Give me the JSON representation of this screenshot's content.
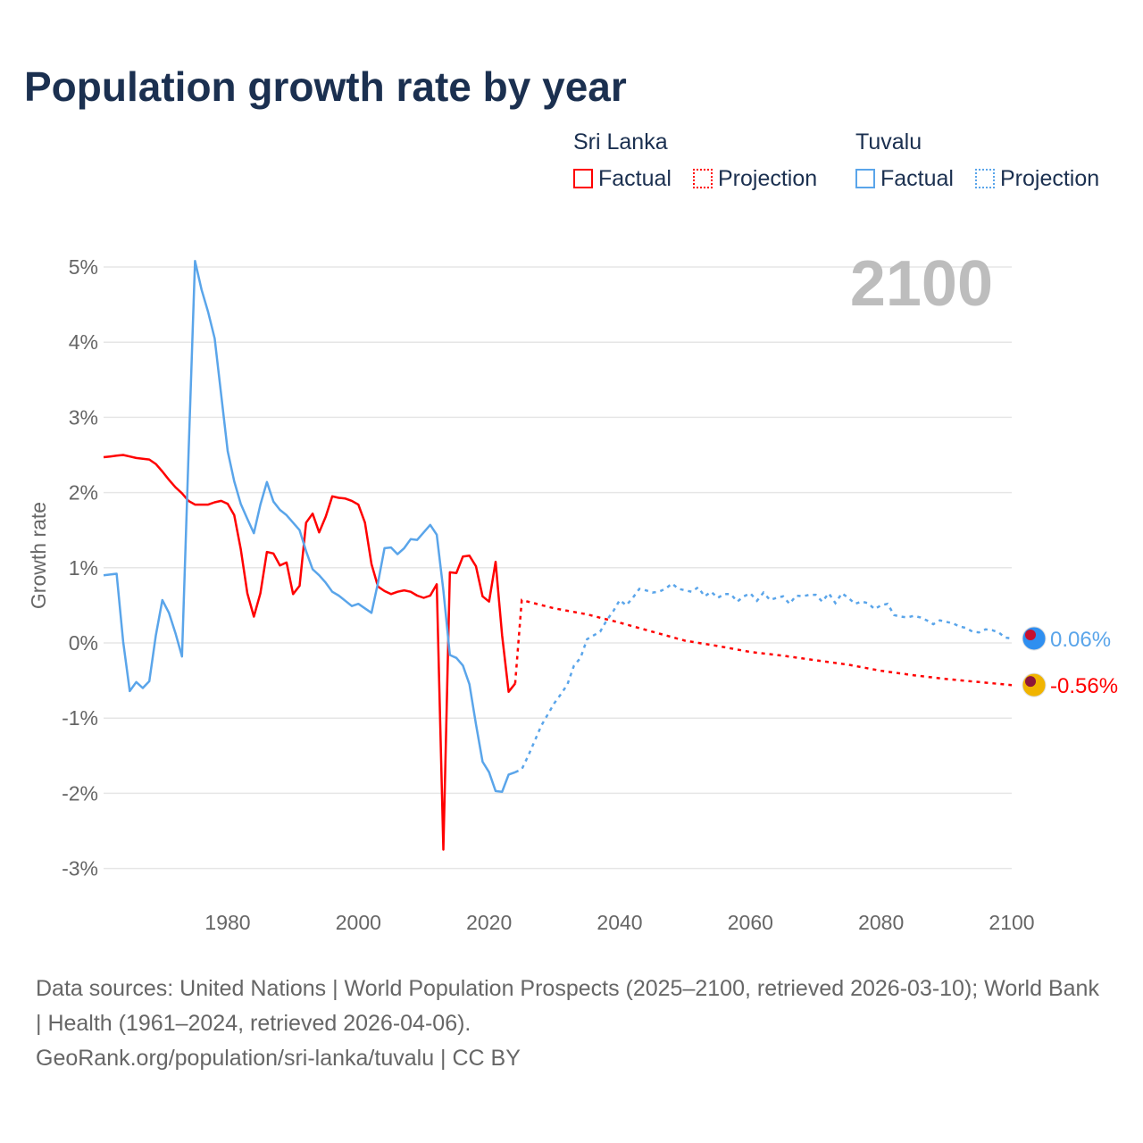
{
  "chart_data": {
    "type": "line",
    "title": "Population growth rate by year",
    "ylabel": "Growth rate",
    "xlabel": "",
    "xlim": [
      1961,
      2100
    ],
    "ylim": [
      -3.3,
      5.2
    ],
    "yticks": [
      5,
      4,
      3,
      2,
      1,
      0,
      -1,
      -2,
      -3
    ],
    "ytick_labels": [
      "5%",
      "4%",
      "3%",
      "2%",
      "1%",
      "0%",
      "-1%",
      "-2%",
      "-3%"
    ],
    "xticks": [
      1980,
      2000,
      2020,
      2040,
      2060,
      2080,
      2100
    ],
    "xtick_labels": [
      "1980",
      "2000",
      "2020",
      "2040",
      "2060",
      "2080",
      "2100"
    ],
    "year_overlay": "2100",
    "legend": {
      "placement": "top-right",
      "groups": [
        {
          "country": "Sri Lanka",
          "factual": "Factual",
          "projection": "Projection",
          "color": "#ff0000"
        },
        {
          "country": "Tuvalu",
          "factual": "Factual",
          "projection": "Projection",
          "color": "#5aa5ea"
        }
      ]
    },
    "series": [
      {
        "name": "Sri Lanka",
        "color": "#ff0000",
        "end_label": "-0.56%",
        "factual": {
          "start": 1961,
          "values": [
            2.47,
            2.48,
            2.49,
            2.5,
            2.48,
            2.46,
            2.45,
            2.44,
            2.38,
            2.28,
            2.17,
            2.07,
            1.99,
            1.89,
            1.84,
            1.84,
            1.84,
            1.87,
            1.89,
            1.85,
            1.7,
            1.25,
            0.66,
            0.35,
            0.66,
            1.21,
            1.19,
            1.03,
            1.07,
            0.65,
            0.76,
            1.6,
            1.72,
            1.47,
            1.68,
            1.95,
            1.93,
            1.92,
            1.89,
            1.84,
            1.6,
            1.05,
            0.75,
            0.69,
            0.65,
            0.68,
            0.7,
            0.68,
            0.63,
            0.6,
            0.63,
            0.78,
            -2.75,
            0.94,
            0.93,
            1.15,
            1.16,
            1.02,
            0.62,
            0.55,
            1.08,
            0.1,
            -0.65,
            -0.54
          ]
        },
        "projection": {
          "start": 2025,
          "step": 5,
          "values": [
            0.57,
            0.46,
            0.38,
            0.27,
            0.15,
            0.03,
            -0.04,
            -0.12,
            -0.17,
            -0.23,
            -0.29,
            -0.37,
            -0.43,
            -0.48,
            -0.52,
            -0.56
          ]
        }
      },
      {
        "name": "Tuvalu",
        "color": "#5aa5ea",
        "end_label": "0.06%",
        "factual": {
          "start": 1961,
          "values": [
            0.9,
            0.91,
            0.92,
            0.02,
            -0.64,
            -0.52,
            -0.6,
            -0.51,
            0.1,
            0.57,
            0.4,
            0.13,
            -0.18,
            2.5,
            5.08,
            4.7,
            4.4,
            4.05,
            3.3,
            2.55,
            2.15,
            1.85,
            1.65,
            1.46,
            1.84,
            2.14,
            1.88,
            1.77,
            1.7,
            1.6,
            1.5,
            1.22,
            0.98,
            0.9,
            0.8,
            0.68,
            0.63,
            0.56,
            0.49,
            0.52,
            0.46,
            0.4,
            0.8,
            1.26,
            1.27,
            1.18,
            1.26,
            1.38,
            1.37,
            1.47,
            1.57,
            1.44,
            0.7,
            -0.16,
            -0.2,
            -0.3,
            -0.55,
            -1.08,
            -1.58,
            -1.72,
            -1.97,
            -1.98,
            -1.75,
            -1.72
          ]
        },
        "projection": {
          "start": 2025,
          "step": 1,
          "values": [
            -1.68,
            -1.5,
            -1.3,
            -1.1,
            -0.95,
            -0.8,
            -0.68,
            -0.55,
            -0.3,
            -0.2,
            0.05,
            0.1,
            0.15,
            0.3,
            0.42,
            0.57,
            0.5,
            0.6,
            0.72,
            0.7,
            0.67,
            0.68,
            0.72,
            0.79,
            0.72,
            0.7,
            0.68,
            0.74,
            0.62,
            0.68,
            0.6,
            0.65,
            0.65,
            0.55,
            0.62,
            0.66,
            0.56,
            0.67,
            0.57,
            0.6,
            0.62,
            0.52,
            0.63,
            0.62,
            0.64,
            0.64,
            0.55,
            0.66,
            0.53,
            0.66,
            0.6,
            0.52,
            0.55,
            0.53,
            0.45,
            0.5,
            0.52,
            0.37,
            0.35,
            0.34,
            0.36,
            0.34,
            0.3,
            0.25,
            0.3,
            0.28,
            0.26,
            0.22,
            0.2,
            0.15,
            0.14,
            0.18,
            0.17,
            0.14,
            0.07,
            0.06
          ]
        }
      }
    ]
  },
  "footer": {
    "line1": "Data sources: United Nations | World Population Prospects (2025–2100, retrieved 2026-03-10); World Bank | Health (1961–2024, retrieved 2026-04-06).",
    "line2": "GeoRank.org/population/sri-lanka/tuvalu | CC BY"
  }
}
